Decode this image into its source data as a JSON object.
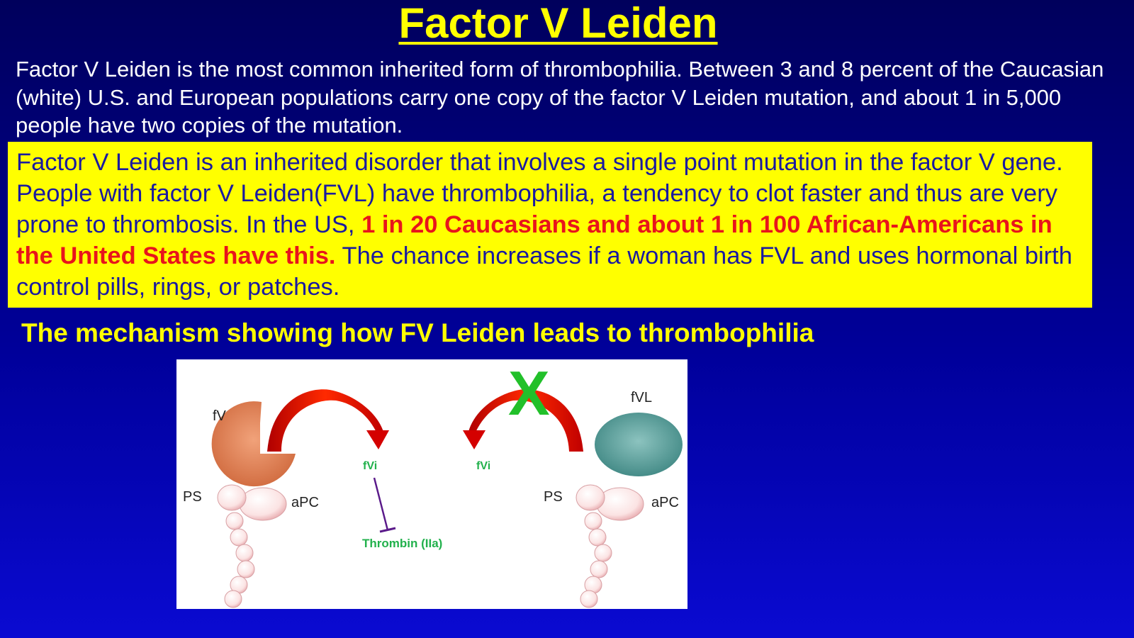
{
  "slide": {
    "title": "Factor V Leiden",
    "intro": "Factor V Leiden is the most common inherited form of thrombophilia. Between 3 and 8 percent of the Caucasian (white) U.S. and European populations carry one copy of the factor V Leiden mutation, and about 1 in 5,000 people have two copies of the mutation.",
    "box": {
      "part1": "Factor V Leiden is an inherited disorder that involves a single point mutation in the factor V gene. People with factor V Leiden(FVL) have thrombophilia, a tendency to clot faster and thus are very prone to thrombosis. In the US, ",
      "highlight": "1 in 20 Caucasians and about 1 in 100 African-Americans in the United States have this.",
      "part2": " The chance increases if a woman has FVL and uses hormonal birth control pills, rings, or patches."
    },
    "subheading": "The mechanism showing how FV Leiden leads to thrombophilia"
  },
  "figure": {
    "left": {
      "fv_label": "fV",
      "ps_label": "PS",
      "apc_label": "aPC",
      "fvi_label": "fVi",
      "thrombin_label": "Thrombin (IIa)"
    },
    "right": {
      "fvl_label": "fVL",
      "ps_label": "PS",
      "apc_label": "aPC",
      "fvi_label": "fVi",
      "block_mark": "X"
    },
    "colors": {
      "arrow_red": "#d40000",
      "green_label": "#22b14c",
      "fv_orange": "#e07a4a",
      "fvl_teal": "#5a9e9a",
      "inhibit_purple": "#5a1a8a"
    }
  }
}
